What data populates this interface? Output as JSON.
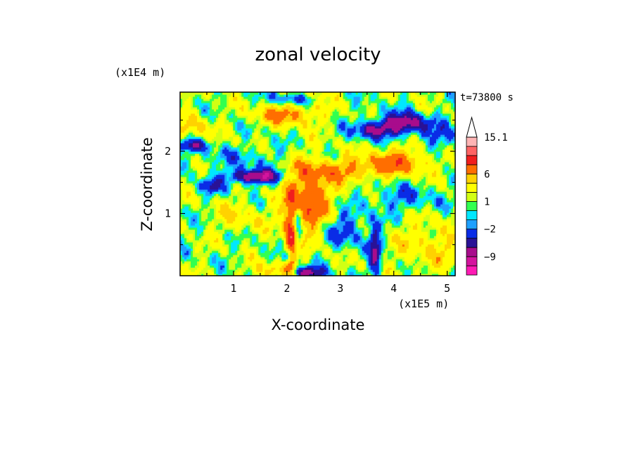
{
  "chart_data": {
    "type": "heatmap",
    "title": "zonal velocity",
    "xlabel": "X-coordinate",
    "ylabel": "Z-coordinate",
    "x_unit": "(x1E5 m)",
    "y_unit": "(x1E4 m)",
    "time_label": "t=73800 s",
    "xlim": [
      0,
      5.15
    ],
    "ylim": [
      0,
      2.95
    ],
    "x_ticks": [
      1,
      2,
      3,
      4,
      5
    ],
    "y_ticks": [
      1,
      2
    ],
    "x_tick_labels": [
      "1",
      "2",
      "3",
      "4",
      "5"
    ],
    "y_tick_labels": [
      "1",
      "2"
    ],
    "colorbar": {
      "levels": [
        -15.1,
        -12,
        -9,
        -6,
        -4,
        -2,
        -1,
        0,
        1,
        2,
        4,
        6,
        9,
        12,
        15.1
      ],
      "colors": [
        "#ff1ab4",
        "#d4149e",
        "#a80c8c",
        "#2a1296",
        "#0a2ce6",
        "#1ea0ff",
        "#00e8ff",
        "#32ff50",
        "#d2ff14",
        "#ffff00",
        "#ffd200",
        "#ff6e00",
        "#f01e1e",
        "#ff6464",
        "#ffb4b4"
      ],
      "labels": [
        {
          "level": 15.1,
          "text": "15.1"
        },
        {
          "level": 6,
          "text": "6"
        },
        {
          "level": 1,
          "text": "1"
        },
        {
          "level": -2,
          "text": "−2"
        },
        {
          "level": -9,
          "text": "−9"
        }
      ],
      "extend": "max"
    },
    "features": [
      {
        "x": 1.1,
        "z": 0.95,
        "u": 2.5,
        "sx": 0.35,
        "sz": 0.18
      },
      {
        "x": 2.4,
        "z": 1.25,
        "u": 8.0,
        "sx": 0.3,
        "sz": 0.4
      },
      {
        "x": 2.1,
        "z": 0.55,
        "u": 9.0,
        "sx": 0.1,
        "sz": 0.5
      },
      {
        "x": 2.0,
        "z": 2.6,
        "u": 6.0,
        "sx": 0.4,
        "sz": 0.12
      },
      {
        "x": 3.1,
        "z": 1.7,
        "u": 5.0,
        "sx": 0.5,
        "sz": 0.12
      },
      {
        "x": 4.1,
        "z": 1.85,
        "u": 6.0,
        "sx": 0.45,
        "sz": 0.15
      },
      {
        "x": 1.7,
        "z": 0.08,
        "u": 4.0,
        "sx": 0.25,
        "sz": 0.1
      },
      {
        "x": 4.7,
        "z": 0.5,
        "u": 3.0,
        "sx": 0.5,
        "sz": 0.3
      },
      {
        "x": 0.2,
        "z": 2.4,
        "u": 3.5,
        "sx": 0.25,
        "sz": 0.15
      },
      {
        "x": 2.5,
        "z": 2.9,
        "u": 3.0,
        "sx": 0.3,
        "sz": 0.1
      },
      {
        "x": 1.4,
        "z": 1.6,
        "u": -10.0,
        "sx": 0.35,
        "sz": 0.08
      },
      {
        "x": 0.6,
        "z": 1.45,
        "u": -5.0,
        "sx": 0.15,
        "sz": 0.08
      },
      {
        "x": 4.2,
        "z": 2.45,
        "u": -9.0,
        "sx": 0.3,
        "sz": 0.12
      },
      {
        "x": 3.6,
        "z": 2.35,
        "u": -7.0,
        "sx": 0.25,
        "sz": 0.1
      },
      {
        "x": 0.25,
        "z": 2.1,
        "u": -6.0,
        "sx": 0.2,
        "sz": 0.07
      },
      {
        "x": 2.35,
        "z": 0.05,
        "u": -9.0,
        "sx": 0.25,
        "sz": 0.07
      },
      {
        "x": 3.65,
        "z": 0.4,
        "u": -7.0,
        "sx": 0.08,
        "sz": 0.3
      },
      {
        "x": 2.2,
        "z": 0.75,
        "u": -8.0,
        "sx": 0.06,
        "sz": 0.35
      },
      {
        "x": 3.1,
        "z": 0.75,
        "u": -4.0,
        "sx": 0.3,
        "sz": 0.2
      },
      {
        "x": 2.2,
        "z": 2.85,
        "u": -6.0,
        "sx": 0.3,
        "sz": 0.07
      },
      {
        "x": 4.2,
        "z": 1.25,
        "u": -3.0,
        "sx": 0.45,
        "sz": 0.15
      },
      {
        "x": 1.2,
        "z": 1.9,
        "u": -2.0,
        "sx": 0.6,
        "sz": 0.12
      },
      {
        "x": 4.9,
        "z": 2.2,
        "u": -3.0,
        "sx": 0.25,
        "sz": 0.2
      },
      {
        "x": 2.0,
        "z": 0.3,
        "u": -5.0,
        "sx": 0.08,
        "sz": 0.08
      }
    ]
  }
}
